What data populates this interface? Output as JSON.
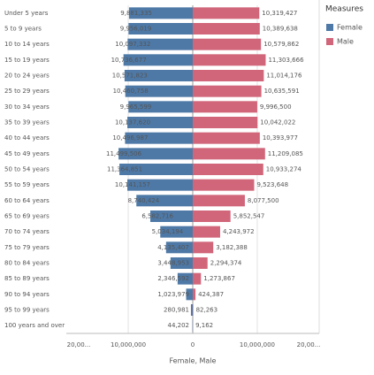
{
  "chart_data": {
    "type": "pyramid",
    "x_label": "Female, Male",
    "legend_title": "Measures",
    "legend_position": "right",
    "grid": true,
    "categories": [
      "Under 5 years",
      "5 to 9 years",
      "10 to 14 years",
      "15 to 19 years",
      "20 to 24 years",
      "25 to 29 years",
      "30 to 34 years",
      "35 to 39 years",
      "40 to 44 years",
      "45 to 49 years",
      "50 to 54 years",
      "55 to 59 years",
      "60 to 64 years",
      "65 to 69 years",
      "70 to 74 years",
      "75 to 79 years",
      "80 to 84 years",
      "85 to 89 years",
      "90 to 94 years",
      "95 to 99 years",
      "100 years and over"
    ],
    "series": [
      {
        "name": "Female",
        "color": "#4e79a7",
        "side": "left",
        "values": [
          9881335,
          9956019,
          10097332,
          10736677,
          10571823,
          10460758,
          9965599,
          10137620,
          10496987,
          11499506,
          11364851,
          10141157,
          8740424,
          6582716,
          5034194,
          4135407,
          3448953,
          2346592,
          1023979,
          280981,
          44202
        ],
        "value_labels": [
          "9,881,335",
          "9,956,019",
          "10,097,332",
          "10,736,677",
          "10,571,823",
          "10,460,758",
          "9,965,599",
          "10,137,620",
          "10,496,987",
          "11,499,506",
          "11,364,851",
          "10,141,157",
          "8,740,424",
          "6,582,716",
          "5,034,194",
          "4,135,407",
          "3,448,953",
          "2,346,592",
          "1,023,979",
          "280,981",
          "44,202"
        ]
      },
      {
        "name": "Male",
        "color": "#d1667a",
        "side": "right",
        "values": [
          10319427,
          10389638,
          10579862,
          11303666,
          11014176,
          10635591,
          9996500,
          10042022,
          10393977,
          11209085,
          10933274,
          9523648,
          8077500,
          5852547,
          4243972,
          3182388,
          2294374,
          1273867,
          424387,
          82263,
          9162
        ],
        "value_labels": [
          "10,319,427",
          "10,389,638",
          "10,579,862",
          "11,303,666",
          "11,014,176",
          "10,635,591",
          "9,996,500",
          "10,042,022",
          "10,393,977",
          "11,209,085",
          "10,933,274",
          "9,523,648",
          "8,077,500",
          "5,852,547",
          "4,243,972",
          "3,182,388",
          "2,294,374",
          "1,273,867",
          "424,387",
          "82,263",
          "9,162"
        ]
      }
    ],
    "xlim": [
      -19600000,
      19600000
    ],
    "xticks": [
      {
        "value": -20000000,
        "label": "20,00..."
      },
      {
        "value": -10000000,
        "label": "10,000,000"
      },
      0,
      {
        "value": 10000000,
        "label": "10,000,000"
      },
      {
        "value": 20000000,
        "label": "20,00..."
      }
    ]
  }
}
